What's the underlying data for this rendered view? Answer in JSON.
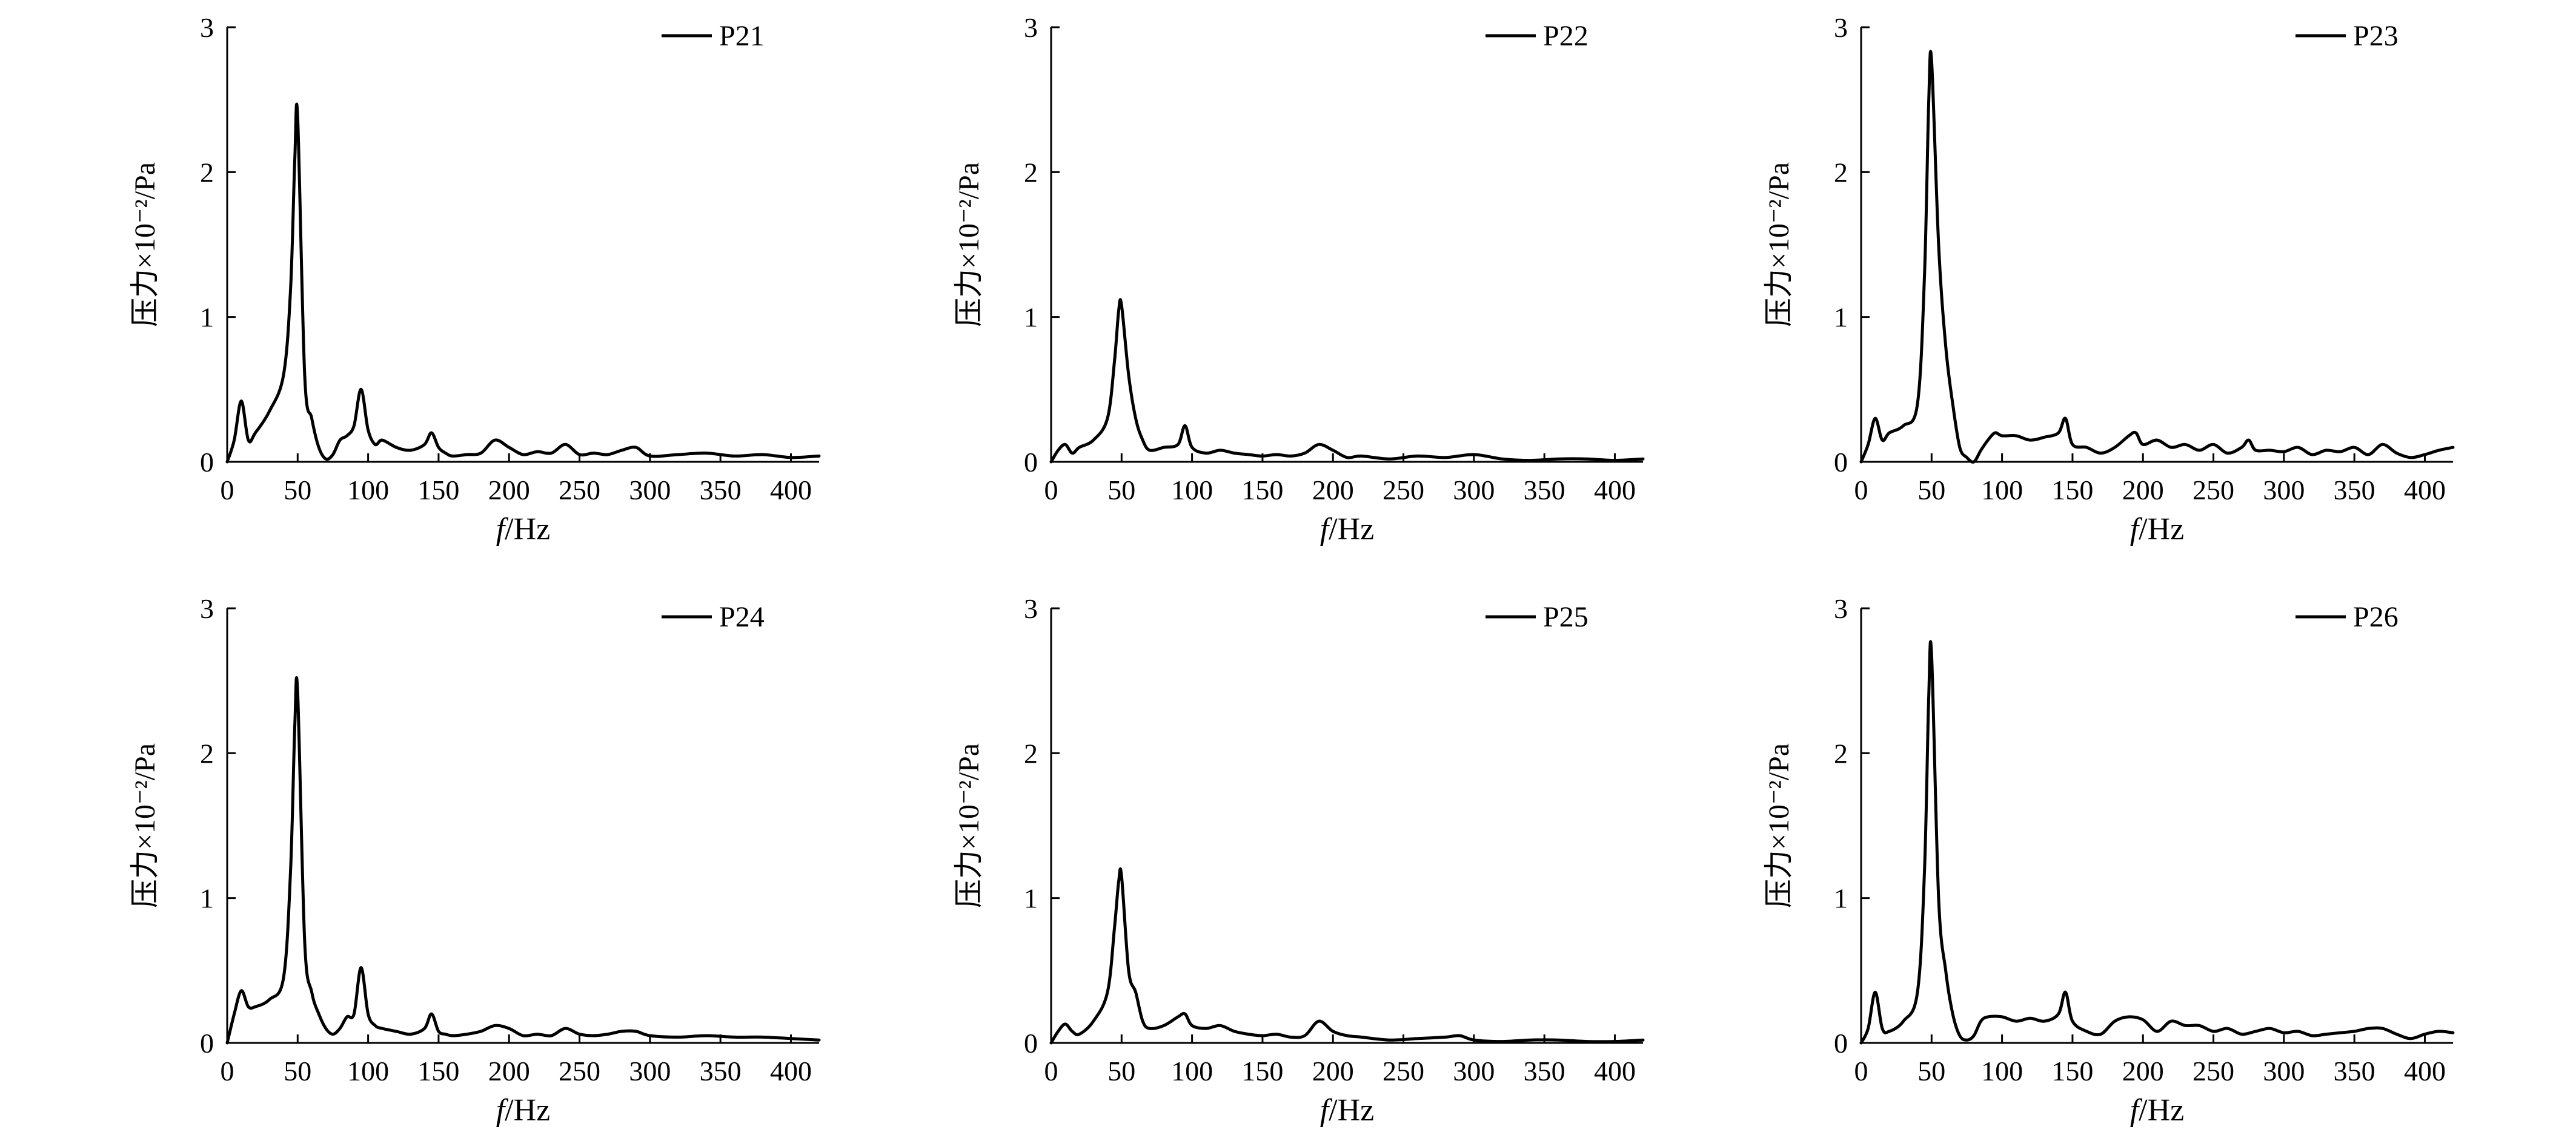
{
  "figure": {
    "y_label": "压力×10⁻²/Pa",
    "x_label_italic": "f",
    "x_label_unit": "/Hz"
  },
  "chart_data": [
    {
      "type": "line",
      "xlabel": "f/Hz",
      "ylabel": "压力×10⁻²/Pa",
      "xlim": [
        0,
        420
      ],
      "ylim": [
        0,
        3
      ],
      "xticks": [
        0,
        50,
        100,
        150,
        200,
        250,
        300,
        350,
        400
      ],
      "yticks": [
        0,
        1,
        2,
        3
      ],
      "legend_position": "top-right",
      "series": [
        {
          "name": "P21",
          "x": [
            0,
            5,
            10,
            15,
            20,
            30,
            40,
            45,
            48,
            50,
            55,
            60,
            65,
            70,
            75,
            80,
            85,
            90,
            95,
            100,
            105,
            110,
            120,
            130,
            140,
            145,
            150,
            155,
            160,
            170,
            180,
            190,
            200,
            210,
            220,
            230,
            240,
            250,
            260,
            270,
            280,
            290,
            300,
            320,
            340,
            360,
            380,
            400,
            420
          ],
          "y": [
            0.0,
            0.15,
            0.42,
            0.15,
            0.2,
            0.35,
            0.6,
            1.2,
            2.1,
            2.38,
            0.6,
            0.3,
            0.1,
            0.02,
            0.05,
            0.15,
            0.18,
            0.25,
            0.5,
            0.22,
            0.12,
            0.15,
            0.1,
            0.08,
            0.12,
            0.2,
            0.1,
            0.06,
            0.04,
            0.05,
            0.06,
            0.15,
            0.1,
            0.05,
            0.07,
            0.06,
            0.12,
            0.05,
            0.06,
            0.05,
            0.08,
            0.1,
            0.04,
            0.05,
            0.06,
            0.04,
            0.05,
            0.03,
            0.04
          ]
        }
      ]
    },
    {
      "type": "line",
      "xlabel": "f/Hz",
      "ylabel": "压力×10⁻²/Pa",
      "xlim": [
        0,
        420
      ],
      "ylim": [
        0,
        3
      ],
      "xticks": [
        0,
        50,
        100,
        150,
        200,
        250,
        300,
        350,
        400
      ],
      "yticks": [
        0,
        1,
        2,
        3
      ],
      "legend_position": "top-right",
      "series": [
        {
          "name": "P22",
          "x": [
            0,
            5,
            10,
            15,
            20,
            30,
            40,
            45,
            48,
            50,
            55,
            60,
            65,
            70,
            80,
            90,
            95,
            100,
            110,
            120,
            130,
            140,
            150,
            160,
            170,
            180,
            190,
            200,
            210,
            220,
            240,
            260,
            280,
            300,
            320,
            340,
            360,
            380,
            400,
            420
          ],
          "y": [
            0.0,
            0.08,
            0.12,
            0.06,
            0.1,
            0.15,
            0.3,
            0.7,
            1.05,
            1.08,
            0.6,
            0.3,
            0.15,
            0.08,
            0.1,
            0.12,
            0.25,
            0.1,
            0.06,
            0.08,
            0.06,
            0.05,
            0.04,
            0.05,
            0.04,
            0.06,
            0.12,
            0.08,
            0.03,
            0.04,
            0.02,
            0.04,
            0.03,
            0.05,
            0.02,
            0.01,
            0.02,
            0.02,
            0.01,
            0.02
          ]
        }
      ]
    },
    {
      "type": "line",
      "xlabel": "f/Hz",
      "ylabel": "压力×10⁻²/Pa",
      "xlim": [
        0,
        420
      ],
      "ylim": [
        0,
        3
      ],
      "xticks": [
        0,
        50,
        100,
        150,
        200,
        250,
        300,
        350,
        400
      ],
      "yticks": [
        0,
        1,
        2,
        3
      ],
      "legend_position": "top-right",
      "series": [
        {
          "name": "P23",
          "x": [
            0,
            5,
            10,
            15,
            20,
            30,
            40,
            45,
            48,
            50,
            55,
            60,
            65,
            70,
            75,
            80,
            85,
            90,
            95,
            100,
            110,
            120,
            130,
            140,
            145,
            150,
            160,
            170,
            180,
            190,
            195,
            200,
            210,
            220,
            230,
            240,
            250,
            260,
            270,
            275,
            280,
            290,
            300,
            310,
            320,
            330,
            340,
            350,
            360,
            370,
            380,
            390,
            400,
            410,
            420
          ],
          "y": [
            0.0,
            0.12,
            0.3,
            0.15,
            0.2,
            0.25,
            0.4,
            1.3,
            2.5,
            2.77,
            1.5,
            0.8,
            0.4,
            0.1,
            0.03,
            0.0,
            0.08,
            0.15,
            0.2,
            0.18,
            0.18,
            0.15,
            0.17,
            0.2,
            0.3,
            0.12,
            0.1,
            0.06,
            0.1,
            0.18,
            0.2,
            0.12,
            0.15,
            0.1,
            0.12,
            0.08,
            0.12,
            0.06,
            0.1,
            0.15,
            0.08,
            0.08,
            0.07,
            0.1,
            0.05,
            0.08,
            0.07,
            0.1,
            0.05,
            0.12,
            0.06,
            0.03,
            0.05,
            0.08,
            0.1
          ]
        }
      ]
    },
    {
      "type": "line",
      "xlabel": "f/Hz",
      "ylabel": "压力×10⁻²/Pa",
      "xlim": [
        0,
        420
      ],
      "ylim": [
        0,
        3
      ],
      "xticks": [
        0,
        50,
        100,
        150,
        200,
        250,
        300,
        350,
        400
      ],
      "yticks": [
        0,
        1,
        2,
        3
      ],
      "legend_position": "top-right",
      "series": [
        {
          "name": "P24",
          "x": [
            0,
            5,
            10,
            15,
            20,
            30,
            40,
            45,
            48,
            50,
            55,
            60,
            65,
            70,
            75,
            80,
            85,
            90,
            95,
            100,
            105,
            110,
            120,
            130,
            140,
            145,
            150,
            155,
            160,
            170,
            180,
            190,
            200,
            210,
            220,
            230,
            240,
            250,
            260,
            270,
            280,
            290,
            300,
            320,
            340,
            360,
            380,
            400,
            420
          ],
          "y": [
            0.0,
            0.2,
            0.36,
            0.25,
            0.25,
            0.3,
            0.45,
            1.2,
            2.2,
            2.42,
            0.7,
            0.35,
            0.2,
            0.1,
            0.06,
            0.1,
            0.18,
            0.2,
            0.52,
            0.2,
            0.12,
            0.1,
            0.08,
            0.06,
            0.1,
            0.2,
            0.08,
            0.06,
            0.05,
            0.06,
            0.08,
            0.12,
            0.1,
            0.05,
            0.06,
            0.05,
            0.1,
            0.06,
            0.05,
            0.06,
            0.08,
            0.08,
            0.05,
            0.04,
            0.05,
            0.04,
            0.04,
            0.03,
            0.02
          ]
        }
      ]
    },
    {
      "type": "line",
      "xlabel": "f/Hz",
      "ylabel": "压力×10⁻²/Pa",
      "xlim": [
        0,
        420
      ],
      "ylim": [
        0,
        3
      ],
      "xticks": [
        0,
        50,
        100,
        150,
        200,
        250,
        300,
        350,
        400
      ],
      "yticks": [
        0,
        1,
        2,
        3
      ],
      "legend_position": "top-right",
      "series": [
        {
          "name": "P25",
          "x": [
            0,
            5,
            10,
            15,
            20,
            30,
            40,
            45,
            48,
            50,
            55,
            60,
            65,
            70,
            80,
            90,
            95,
            100,
            110,
            120,
            130,
            140,
            150,
            160,
            170,
            180,
            190,
            200,
            210,
            220,
            240,
            260,
            280,
            290,
            300,
            320,
            340,
            360,
            380,
            400,
            420
          ],
          "y": [
            0.0,
            0.08,
            0.13,
            0.08,
            0.06,
            0.15,
            0.35,
            0.8,
            1.12,
            1.15,
            0.5,
            0.35,
            0.15,
            0.1,
            0.12,
            0.18,
            0.2,
            0.12,
            0.1,
            0.12,
            0.08,
            0.06,
            0.05,
            0.06,
            0.04,
            0.05,
            0.15,
            0.08,
            0.05,
            0.04,
            0.02,
            0.03,
            0.04,
            0.05,
            0.02,
            0.01,
            0.02,
            0.02,
            0.01,
            0.01,
            0.02
          ]
        }
      ]
    },
    {
      "type": "line",
      "xlabel": "f/Hz",
      "ylabel": "压力×10⁻²/Pa",
      "xlim": [
        0,
        420
      ],
      "ylim": [
        0,
        3
      ],
      "xticks": [
        0,
        50,
        100,
        150,
        200,
        250,
        300,
        350,
        400
      ],
      "yticks": [
        0,
        1,
        2,
        3
      ],
      "legend_position": "top-right",
      "series": [
        {
          "name": "P26",
          "x": [
            0,
            5,
            10,
            15,
            20,
            30,
            40,
            45,
            48,
            50,
            55,
            60,
            65,
            70,
            75,
            80,
            85,
            90,
            100,
            110,
            120,
            130,
            140,
            145,
            150,
            160,
            170,
            180,
            190,
            200,
            210,
            220,
            230,
            240,
            250,
            260,
            270,
            280,
            290,
            300,
            310,
            320,
            330,
            340,
            350,
            360,
            370,
            380,
            390,
            400,
            410,
            420
          ],
          "y": [
            0.0,
            0.1,
            0.35,
            0.1,
            0.08,
            0.15,
            0.35,
            1.2,
            2.4,
            2.68,
            1.0,
            0.5,
            0.2,
            0.05,
            0.02,
            0.05,
            0.15,
            0.18,
            0.18,
            0.15,
            0.17,
            0.15,
            0.2,
            0.35,
            0.15,
            0.08,
            0.06,
            0.15,
            0.18,
            0.16,
            0.08,
            0.15,
            0.12,
            0.12,
            0.08,
            0.1,
            0.06,
            0.08,
            0.1,
            0.07,
            0.08,
            0.05,
            0.06,
            0.07,
            0.08,
            0.1,
            0.1,
            0.06,
            0.03,
            0.06,
            0.08,
            0.07
          ]
        }
      ]
    }
  ]
}
